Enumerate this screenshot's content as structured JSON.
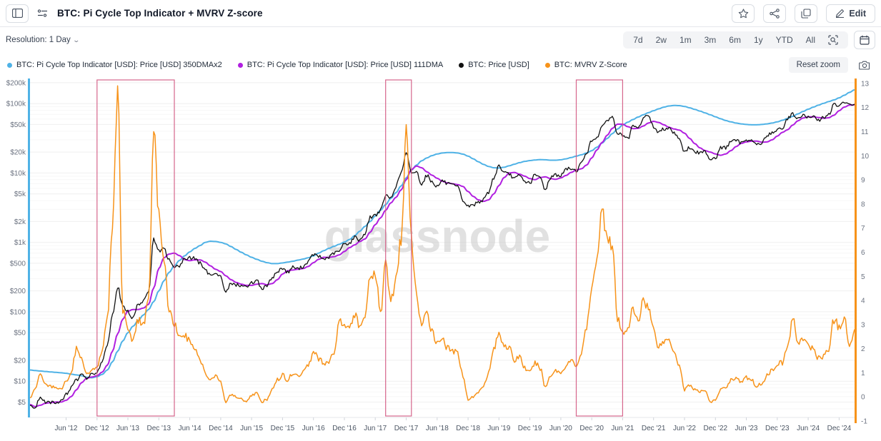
{
  "header": {
    "title": "BTC: Pi Cycle Top Indicator + MVRV Z-score",
    "edit_label": "Edit"
  },
  "toolbar": {
    "resolution_label": "Resolution: 1 Day",
    "ranges": [
      "7d",
      "2w",
      "1m",
      "3m",
      "6m",
      "1y",
      "YTD",
      "All"
    ],
    "reset_zoom_label": "Reset zoom"
  },
  "watermark": "glassnode",
  "colors": {
    "pi_cycle_350": "#4fb2e6",
    "pi_cycle_111": "#b11fe0",
    "price": "#111111",
    "mvrv": "#f7931a",
    "highlight_box": "#d1557f",
    "grid_major": "#efefef",
    "grid_minor": "#f7f7f7"
  },
  "chart_data": {
    "type": "line",
    "title": "BTC: Pi Cycle Top Indicator + MVRV Z-score",
    "x_axis": {
      "freq": "monthly",
      "start": "2011-11",
      "end": "2025-03",
      "tick_labels": [
        "Jun '12",
        "Dec '12",
        "Jun '13",
        "Dec '13",
        "Jun '14",
        "Dec '14",
        "Jun '15",
        "Dec '15",
        "Jun '16",
        "Dec '16",
        "Jun '17",
        "Dec '17",
        "Jun '18",
        "Dec '18",
        "Jun '19",
        "Dec '19",
        "Jun '20",
        "Dec '20",
        "Jun '21",
        "Dec '21",
        "Jun '22",
        "Dec '22",
        "Jun '23",
        "Dec '23",
        "Jun '24",
        "Dec '24"
      ],
      "first_tick_month": "2012-06",
      "tick_step_months": 6
    },
    "y_left": {
      "scale": "log",
      "unit": "USD",
      "tick_labels": [
        "$200k",
        "$100k",
        "$50k",
        "$20k",
        "$10k",
        "$5k",
        "$2k",
        "$1k",
        "$500",
        "$200",
        "$100",
        "$50",
        "$20",
        "$10",
        "$5"
      ],
      "tick_values": [
        200000,
        100000,
        50000,
        20000,
        10000,
        5000,
        2000,
        1000,
        500,
        200,
        100,
        50,
        20,
        10,
        5
      ],
      "domain": [
        3,
        230000
      ]
    },
    "y_right": {
      "scale": "linear",
      "ticks": [
        13,
        12,
        11,
        10,
        9,
        8,
        7,
        6,
        5,
        4,
        3,
        2,
        1,
        0,
        -1
      ],
      "domain": [
        -1,
        13
      ]
    },
    "grid": "horizontal",
    "legend_position": "top-left",
    "highlight_boxes": [
      {
        "from": "2012-12",
        "to": "2014-03"
      },
      {
        "from": "2017-08",
        "to": "2018-01"
      },
      {
        "from": "2020-09",
        "to": "2021-06"
      }
    ],
    "series": [
      {
        "name": "BTC: Pi Cycle Top Indicator [USD]: Price [USD] 350DMAx2",
        "axis": "left",
        "color": "#4fb2e6",
        "noisy": false,
        "values": [
          14.5,
          14.2,
          14.0,
          13.8,
          13.6,
          13.4,
          13.2,
          13.0,
          12.6,
          12.3,
          12.0,
          11.4,
          11.2,
          11.6,
          12.5,
          14.5,
          19,
          27,
          38,
          50,
          62,
          75,
          90,
          108,
          140,
          200,
          280,
          370,
          460,
          550,
          640,
          730,
          820,
          900,
          1000,
          1040,
          1030,
          1000,
          950,
          870,
          790,
          720,
          660,
          610,
          570,
          535,
          510,
          495,
          495,
          505,
          520,
          535,
          555,
          575,
          600,
          640,
          700,
          760,
          820,
          880,
          940,
          1010,
          1100,
          1250,
          1450,
          1700,
          2000,
          2400,
          2900,
          3500,
          4300,
          5200,
          6500,
          8500,
          11000,
          13000,
          15000,
          16500,
          17800,
          18800,
          19400,
          19700,
          19700,
          19400,
          18700,
          17500,
          16000,
          14500,
          13300,
          12400,
          11900,
          11800,
          12100,
          12700,
          13400,
          14100,
          14700,
          15100,
          15400,
          15600,
          15500,
          15300,
          15300,
          15500,
          16000,
          16700,
          17500,
          18300,
          19400,
          21000,
          23500,
          27000,
          31500,
          37000,
          43000,
          49000,
          54000,
          59000,
          64000,
          69000,
          74000,
          79000,
          84000,
          89000,
          92500,
          94000,
          93500,
          91000,
          87000,
          82500,
          78000,
          73500,
          69000,
          64500,
          60500,
          57000,
          54500,
          52500,
          51000,
          50000,
          49500,
          49500,
          50000,
          51000,
          52500,
          54500,
          57500,
          61000,
          65500,
          71000,
          77000,
          83000,
          89000,
          95000,
          101000,
          107000,
          113000,
          121000,
          132000,
          145000,
          158000
        ]
      },
      {
        "name": "BTC: Pi Cycle Top Indicator [USD]: Price [USD] 111DMA",
        "axis": "left",
        "color": "#b11fe0",
        "noisy": false,
        "values": [
          4.6,
          4.3,
          4.5,
          4.8,
          4.9,
          5.0,
          5.0,
          5.3,
          6.0,
          7.5,
          9.5,
          11.0,
          11.5,
          12.0,
          13.5,
          17,
          27,
          48,
          78,
          102,
          108,
          108,
          113,
          128,
          220,
          420,
          600,
          680,
          700,
          645,
          565,
          545,
          560,
          560,
          520,
          460,
          410,
          380,
          330,
          290,
          265,
          250,
          240,
          240,
          250,
          255,
          245,
          255,
          290,
          350,
          390,
          400,
          410,
          420,
          450,
          510,
          570,
          610,
          608,
          623,
          660,
          740,
          840,
          920,
          1030,
          1120,
          1400,
          1800,
          2250,
          2900,
          3700,
          4450,
          5700,
          8000,
          11200,
          12600,
          11900,
          10400,
          9300,
          8400,
          7600,
          7200,
          7000,
          6800,
          6400,
          5400,
          4600,
          4100,
          3900,
          4100,
          5000,
          6600,
          8600,
          10000,
          10200,
          9600,
          9000,
          8300,
          8000,
          8600,
          8800,
          8300,
          8100,
          8500,
          9200,
          10200,
          11000,
          11500,
          13000,
          16500,
          21500,
          27500,
          35000,
          44000,
          50500,
          50500,
          46500,
          43500,
          44000,
          47500,
          52500,
          55500,
          53500,
          49500,
          45500,
          43000,
          41500,
          37500,
          31500,
          26500,
          23000,
          21000,
          20000,
          18800,
          18000,
          18800,
          21000,
          24000,
          26700,
          28000,
          28700,
          28800,
          27800,
          28000,
          30000,
          34000,
          38500,
          42000,
          49000,
          56500,
          62000,
          64500,
          64500,
          63000,
          61500,
          62500,
          68000,
          79000,
          89000,
          95000,
          96000
        ]
      },
      {
        "name": "BTC: Price [USD]",
        "axis": "left",
        "color": "#111111",
        "noisy": true,
        "values": [
          4.5,
          4.2,
          5.8,
          5.0,
          4.9,
          5.0,
          5.1,
          6.5,
          8.0,
          10.5,
          12.3,
          11.0,
          12.4,
          13.5,
          20,
          33,
          90,
          230,
          120,
          100,
          80,
          130,
          140,
          200,
          1100,
          750,
          800,
          560,
          450,
          445,
          590,
          600,
          590,
          505,
          390,
          340,
          375,
          320,
          190,
          255,
          245,
          235,
          235,
          260,
          285,
          215,
          237,
          315,
          375,
          430,
          370,
          440,
          415,
          450,
          530,
          670,
          625,
          575,
          610,
          700,
          745,
          960,
          970,
          1190,
          1080,
          1350,
          2300,
          2480,
          2870,
          4700,
          4340,
          6450,
          10000,
          19000,
          10200,
          10300,
          7000,
          9250,
          7500,
          6400,
          7750,
          7000,
          6600,
          6300,
          4000,
          3300,
          3460,
          3850,
          4100,
          5300,
          8550,
          12800,
          10000,
          9600,
          8300,
          9150,
          7550,
          7200,
          9350,
          8550,
          5800,
          8650,
          9450,
          9140,
          11350,
          11650,
          10780,
          13800,
          19700,
          29000,
          33100,
          45200,
          58800,
          63500,
          37300,
          35000,
          30500,
          47100,
          43800,
          61300,
          68500,
          46200,
          38500,
          43200,
          45500,
          37650,
          31800,
          19950,
          23300,
          20050,
          19400,
          20500,
          16000,
          16550,
          23100,
          23150,
          28500,
          29250,
          27200,
          30450,
          29250,
          25950,
          26950,
          34650,
          37700,
          42250,
          42550,
          61200,
          71300,
          60650,
          67500,
          62700,
          64600,
          57000,
          63300,
          70200,
          96400,
          93400,
          102400,
          96000,
          98000
        ]
      },
      {
        "name": "BTC: MVRV Z-Score",
        "axis": "right",
        "color": "#f7931a",
        "noisy": true,
        "values": [
          0.0,
          0.3,
          0.9,
          0.5,
          0.45,
          0.4,
          0.35,
          0.6,
          1.0,
          2.0,
          1.6,
          1.0,
          1.1,
          1.2,
          1.9,
          3.3,
          7.0,
          12.5,
          3.6,
          2.8,
          2.4,
          3.2,
          3.0,
          4.0,
          11.1,
          7.6,
          5.5,
          3.6,
          3.0,
          2.4,
          2.6,
          2.3,
          2.0,
          1.5,
          1.0,
          0.7,
          0.9,
          0.6,
          -0.25,
          0.1,
          0.0,
          -0.1,
          -0.15,
          0.05,
          0.15,
          -0.2,
          -0.1,
          0.3,
          0.7,
          0.9,
          0.7,
          1.0,
          0.9,
          1.0,
          1.3,
          1.9,
          1.6,
          1.4,
          1.5,
          1.8,
          3.2,
          2.9,
          3.0,
          3.4,
          2.9,
          3.4,
          4.8,
          5.2,
          3.4,
          5.6,
          4.0,
          4.8,
          6.5,
          11.0,
          6.5,
          4.2,
          3.0,
          3.4,
          2.8,
          2.2,
          2.5,
          2.0,
          1.9,
          1.8,
          0.9,
          -0.1,
          0.0,
          0.2,
          0.5,
          1.0,
          2.0,
          2.6,
          2.2,
          2.0,
          1.5,
          1.7,
          1.2,
          1.0,
          1.4,
          1.2,
          0.4,
          0.9,
          1.1,
          1.0,
          1.3,
          1.5,
          1.3,
          1.8,
          2.9,
          4.4,
          5.9,
          7.7,
          6.8,
          6.2,
          3.2,
          2.6,
          2.9,
          3.6,
          3.1,
          4.1,
          3.7,
          2.8,
          2.1,
          2.3,
          2.4,
          1.9,
          1.3,
          0.3,
          0.5,
          0.3,
          0.2,
          0.3,
          -0.2,
          -0.15,
          0.3,
          0.4,
          0.7,
          0.8,
          0.6,
          0.8,
          0.7,
          0.45,
          0.55,
          0.9,
          1.1,
          1.4,
          1.4,
          2.1,
          3.2,
          2.3,
          2.4,
          2.1,
          2.0,
          1.6,
          1.7,
          2.0,
          3.2,
          2.9,
          3.2,
          2.1,
          2.8
        ]
      }
    ]
  }
}
